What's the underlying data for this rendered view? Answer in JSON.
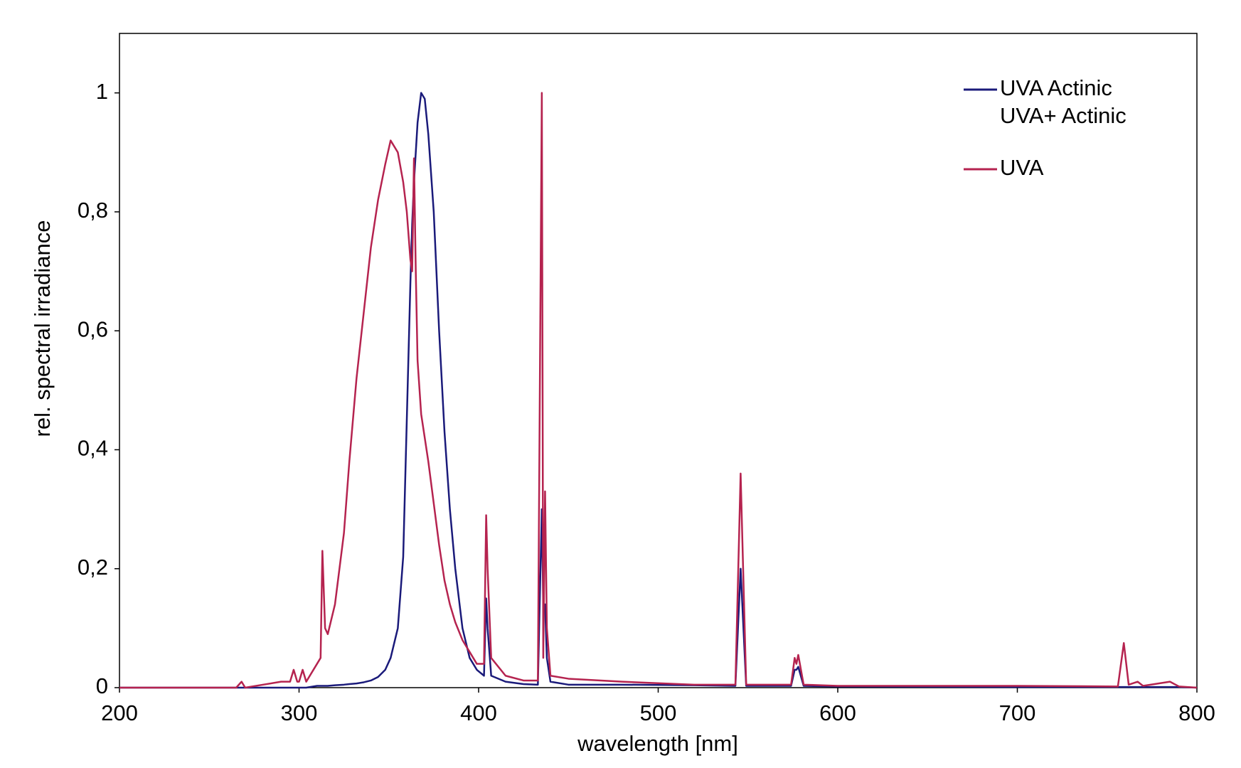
{
  "chart_data": {
    "type": "line",
    "xlabel": "wavelength [nm]",
    "ylabel": "rel. spectral irradiance",
    "xlim": [
      200,
      800
    ],
    "xticks": [
      200,
      300,
      400,
      500,
      600,
      700,
      800
    ],
    "ylim": [
      0,
      1.1
    ],
    "yticks": [
      0,
      {
        "value": 0.2,
        "label": "0,2"
      },
      {
        "value": 0.4,
        "label": "0,4"
      },
      {
        "value": 0.6,
        "label": "0,6"
      },
      {
        "value": 0.8,
        "label": "0,8"
      },
      1
    ],
    "grid": false,
    "legend": "upper right",
    "x": [
      200,
      265,
      268,
      270,
      280,
      290,
      295,
      297,
      299,
      300,
      302,
      304,
      310,
      312,
      313,
      314.5,
      316,
      320,
      325,
      328,
      332,
      336,
      340,
      344,
      348,
      351,
      355,
      358,
      360,
      362,
      363,
      364,
      365,
      366,
      368,
      370,
      372,
      375,
      378,
      381,
      384,
      387,
      391,
      395,
      399,
      403,
      404.2,
      405,
      407,
      415,
      425,
      433,
      435.2,
      436,
      437,
      438,
      440,
      450,
      480,
      520,
      543,
      545.9,
      549,
      574,
      576,
      577,
      578,
      581,
      600,
      700,
      756,
      759.3,
      762,
      767,
      770,
      785,
      790,
      800
    ],
    "series": [
      {
        "name": [
          "UVA Actinic",
          "UVA+ Actinic"
        ],
        "color": "#1a1a7a",
        "values": [
          0,
          0,
          0,
          0,
          0,
          0,
          0,
          0,
          0,
          0,
          0,
          0,
          0.003,
          0.003,
          0.003,
          0.003,
          0.003,
          0.004,
          0.005,
          0.006,
          0.007,
          0.009,
          0.012,
          0.018,
          0.03,
          0.05,
          0.1,
          0.22,
          0.45,
          0.68,
          0.78,
          0.85,
          0.9,
          0.95,
          1.0,
          0.99,
          0.93,
          0.8,
          0.6,
          0.43,
          0.3,
          0.2,
          0.1,
          0.05,
          0.03,
          0.02,
          0.15,
          0.1,
          0.02,
          0.01,
          0.006,
          0.005,
          0.3,
          0.14,
          0.14,
          0.05,
          0.01,
          0.005,
          0.005,
          0.004,
          0.003,
          0.2,
          0.003,
          0.003,
          0.03,
          0.03,
          0.035,
          0.003,
          0.002,
          0.001,
          0.001,
          0.001,
          0.001,
          0.001,
          0.001,
          0.001,
          0.001,
          0
        ]
      },
      {
        "name": [
          "UVA"
        ],
        "color": "#b5234f",
        "values": [
          0,
          0,
          0.01,
          0,
          0.005,
          0.01,
          0.01,
          0.03,
          0.01,
          0.01,
          0.03,
          0.01,
          0.04,
          0.05,
          0.23,
          0.1,
          0.09,
          0.14,
          0.26,
          0.38,
          0.52,
          0.63,
          0.74,
          0.82,
          0.88,
          0.92,
          0.9,
          0.85,
          0.8,
          0.72,
          0.7,
          0.89,
          0.7,
          0.55,
          0.46,
          0.42,
          0.38,
          0.31,
          0.24,
          0.18,
          0.14,
          0.11,
          0.08,
          0.06,
          0.04,
          0.04,
          0.29,
          0.2,
          0.05,
          0.02,
          0.012,
          0.012,
          1.0,
          0.05,
          0.33,
          0.1,
          0.02,
          0.015,
          0.01,
          0.005,
          0.005,
          0.36,
          0.005,
          0.005,
          0.05,
          0.04,
          0.055,
          0.005,
          0.003,
          0.003,
          0.002,
          0.075,
          0.005,
          0.01,
          0.003,
          0.01,
          0.002,
          0
        ]
      }
    ]
  }
}
